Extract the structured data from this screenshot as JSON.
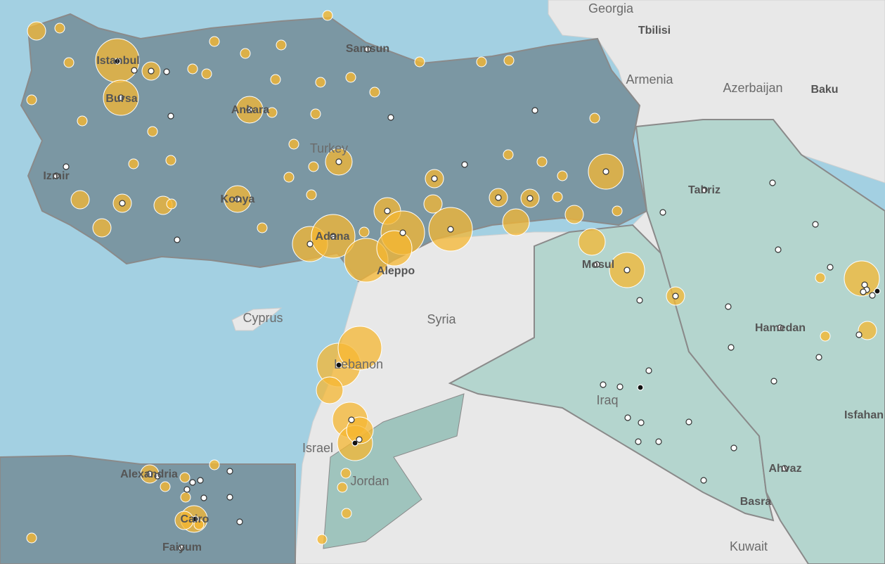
{
  "labels": {
    "countries": [
      "Georgia",
      "Armenia",
      "Azerbaijan",
      "Turkey",
      "Cyprus",
      "Syria",
      "Lebanon",
      "Israel",
      "Jordan",
      "Iraq",
      "Kuwait"
    ],
    "cities": [
      "Tbilisi",
      "Baku",
      "Samsun",
      "Istanbul",
      "Bursa",
      "Ankara",
      "Izmir",
      "Konya",
      "Adana",
      "Aleppo",
      "Alexandria",
      "Cairo",
      "Faiyum",
      "Tabriz",
      "Mosul",
      "Hamedan",
      "Isfahan",
      "Ahvaz",
      "Basra"
    ]
  }
}
